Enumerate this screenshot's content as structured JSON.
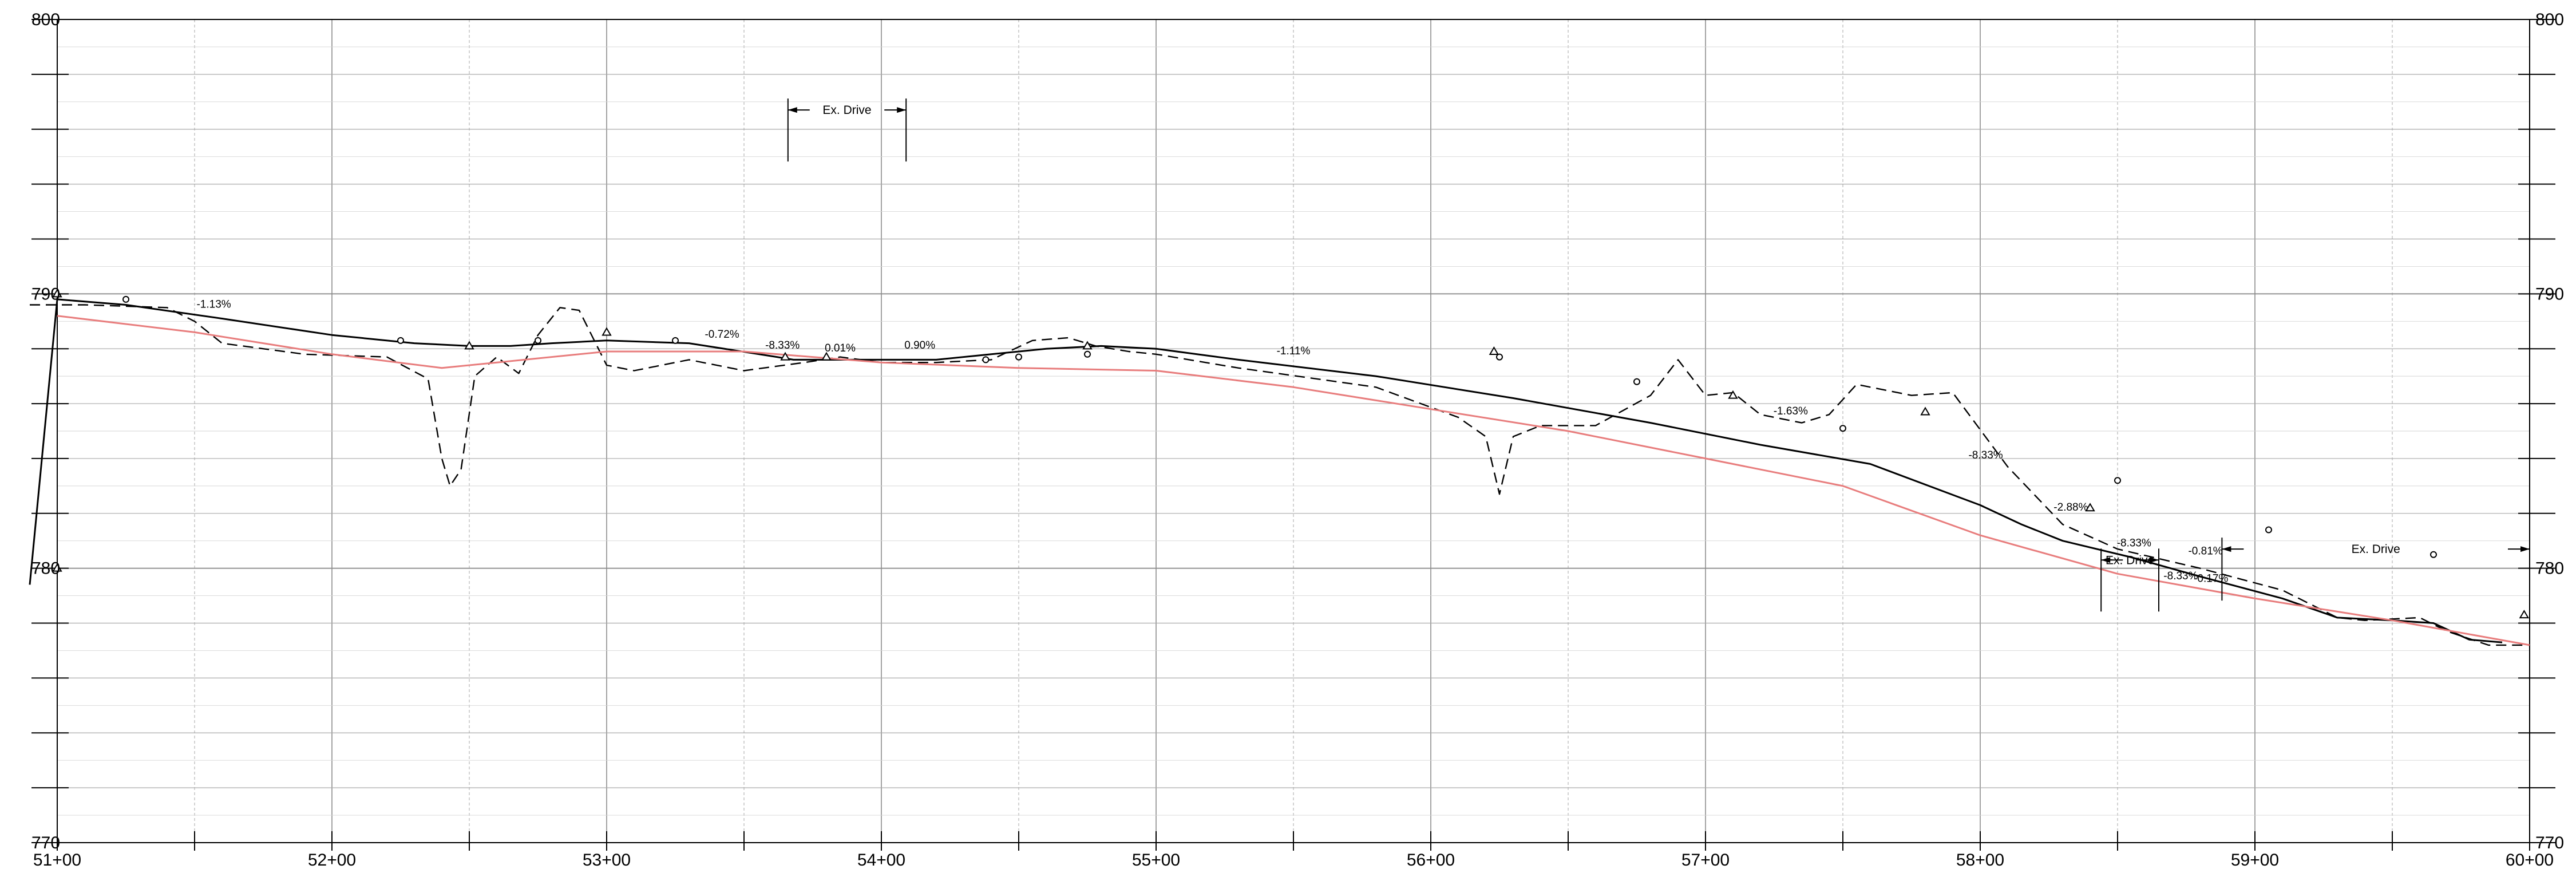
{
  "chart_data": {
    "type": "line",
    "title": "",
    "xlabel": "",
    "ylabel": "",
    "xlim": [
      5100,
      6000
    ],
    "ylim": [
      770,
      800
    ],
    "grid": true,
    "x_tick_labels": [
      "51+00",
      "52+00",
      "53+00",
      "54+00",
      "55+00",
      "56+00",
      "57+00",
      "58+00",
      "59+00",
      "60+00"
    ],
    "x_tick_values": [
      5100,
      5200,
      5300,
      5400,
      5500,
      5600,
      5700,
      5800,
      5900,
      6000
    ],
    "y_tick_values": [
      770,
      780,
      790,
      800
    ],
    "y_tick_labels_left": [
      "770",
      "780",
      "790",
      "800"
    ],
    "y_tick_labels_right": [
      "770",
      "780",
      "790",
      "800"
    ],
    "series": [
      {
        "style": "solid",
        "color": "#000000",
        "x": [
          5090,
          5100,
          5125,
          5160,
          5200,
          5230,
          5250,
          5265,
          5280,
          5300,
          5330,
          5362,
          5368,
          5390,
          5405,
          5420,
          5440,
          5460,
          5480,
          5500,
          5530,
          5580,
          5630,
          5680,
          5720,
          5760,
          5800,
          5815,
          5830,
          5855,
          5880,
          5910,
          5930,
          5950,
          5965,
          5978,
          5990
        ],
        "y": [
          779.4,
          789.8,
          789.6,
          789.1,
          788.5,
          788.2,
          788.1,
          788.1,
          788.2,
          788.3,
          788.2,
          787.7,
          787.6,
          787.6,
          787.6,
          787.6,
          787.8,
          788.0,
          788.1,
          788.0,
          787.6,
          787.0,
          786.2,
          785.3,
          784.5,
          783.8,
          782.3,
          781.6,
          781.0,
          780.4,
          779.7,
          778.9,
          778.2,
          778.1,
          778.0,
          777.4,
          777.3
        ]
      },
      {
        "style": "dashed",
        "color": "#000000",
        "x": [
          5090,
          5110,
          5140,
          5150,
          5160,
          5190,
          5220,
          5235,
          5240,
          5243,
          5247,
          5252,
          5260,
          5268,
          5275,
          5283,
          5290,
          5300,
          5310,
          5330,
          5350,
          5372,
          5385,
          5400,
          5420,
          5440,
          5455,
          5468,
          5478,
          5490,
          5500,
          5530,
          5580,
          5610,
          5620,
          5625,
          5630,
          5640,
          5660,
          5680,
          5690,
          5700,
          5710,
          5720,
          5735,
          5745,
          5755,
          5765,
          5775,
          5790,
          5810,
          5830,
          5850,
          5880,
          5910,
          5930,
          5940,
          5960,
          5970,
          5985,
          6000
        ],
        "y": [
          789.6,
          789.6,
          789.5,
          789.0,
          788.2,
          787.8,
          787.7,
          786.9,
          784.0,
          783.0,
          783.6,
          787.0,
          787.7,
          787.1,
          788.5,
          789.5,
          789.4,
          787.4,
          787.2,
          787.6,
          787.2,
          787.5,
          787.7,
          787.5,
          787.5,
          787.6,
          788.3,
          788.4,
          788.1,
          787.9,
          787.8,
          787.3,
          786.6,
          785.5,
          784.8,
          782.7,
          784.8,
          785.2,
          785.2,
          786.3,
          787.6,
          786.3,
          786.4,
          785.6,
          785.3,
          785.6,
          786.7,
          786.5,
          786.3,
          786.4,
          783.7,
          781.6,
          780.7,
          780.0,
          779.2,
          778.2,
          778.1,
          778.2,
          777.7,
          777.2,
          777.2
        ]
      },
      {
        "style": "solid",
        "color": "#e87d7d",
        "x": [
          5100,
          5150,
          5200,
          5240,
          5260,
          5300,
          5350,
          5400,
          5450,
          5500,
          5550,
          5600,
          5650,
          5700,
          5750,
          5800,
          5850,
          5900,
          5950,
          6000
        ],
        "y": [
          789.2,
          788.6,
          787.8,
          787.3,
          787.5,
          787.9,
          787.9,
          787.5,
          787.3,
          787.2,
          786.6,
          785.8,
          785.0,
          784.0,
          783.0,
          781.2,
          779.8,
          778.9,
          778.1,
          777.2
        ]
      }
    ],
    "markers": {
      "circles": [
        [
          5125,
          789.8
        ],
        [
          5225,
          788.3
        ],
        [
          5275,
          788.3
        ],
        [
          5325,
          788.3
        ],
        [
          5438,
          787.6
        ],
        [
          5450,
          787.7
        ],
        [
          5475,
          787.8
        ],
        [
          5625,
          787.7
        ],
        [
          5675,
          786.8
        ],
        [
          5750,
          785.1
        ],
        [
          5850,
          783.2
        ],
        [
          5905,
          781.4
        ],
        [
          5965,
          780.5
        ]
      ],
      "triangles": [
        [
          5100,
          790.0
        ],
        [
          5100,
          780.0
        ],
        [
          5250,
          788.1
        ],
        [
          5300,
          788.6
        ],
        [
          5365,
          787.7
        ],
        [
          5380,
          787.7
        ],
        [
          5475,
          788.1
        ],
        [
          5623,
          787.9
        ],
        [
          5710,
          786.3
        ],
        [
          5780,
          785.7
        ],
        [
          5840,
          782.2
        ],
        [
          5998,
          778.3
        ]
      ]
    },
    "slope_labels": [
      {
        "text": "-1.13%",
        "x": 5157,
        "y": 789.5
      },
      {
        "text": "-0.72%",
        "x": 5342,
        "y": 788.4
      },
      {
        "text": "-8.33%",
        "x": 5364,
        "y": 788.0
      },
      {
        "text": "0.01%",
        "x": 5385,
        "y": 787.9
      },
      {
        "text": "0.90%",
        "x": 5414,
        "y": 788.0
      },
      {
        "text": "-1.11%",
        "x": 5550,
        "y": 787.8
      },
      {
        "text": "-1.63%",
        "x": 5731,
        "y": 785.6
      },
      {
        "text": "-8.33%",
        "x": 5802,
        "y": 784.0
      },
      {
        "text": "-2.88%",
        "x": 5833,
        "y": 782.1
      },
      {
        "text": "-8.33%",
        "x": 5856,
        "y": 780.8
      },
      {
        "text": "-0.81%",
        "x": 5882,
        "y": 780.5
      },
      {
        "text": "-8.33%",
        "x": 5873,
        "y": 779.6
      },
      {
        "text": "-0.17%",
        "x": 5884,
        "y": 779.5
      }
    ],
    "drive_callouts": [
      {
        "label": "Ex. Drive",
        "x1": 5366,
        "x2": 5409,
        "label_y": 796.7
      },
      {
        "label": "Ex. Drive",
        "x1": 5844,
        "x2": 5865,
        "label_y": 780.3
      },
      {
        "label": "Ex. Drive",
        "x1": 5888,
        "x2": 6000,
        "label_y": 780.7
      }
    ]
  }
}
